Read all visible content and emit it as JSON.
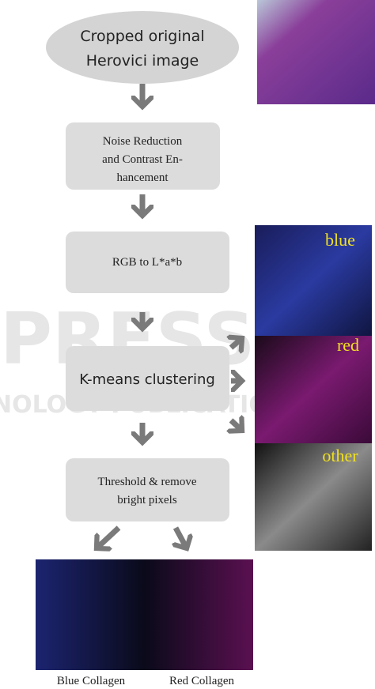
{
  "steps": [
    {
      "lines": [
        "Cropped original",
        "Herovici image"
      ]
    },
    {
      "lines": [
        "Noise Reduction",
        "and Contrast En-",
        "hancement"
      ]
    },
    {
      "lines": [
        "RGB to L*a*b"
      ]
    },
    {
      "lines": [
        "K-means clustering"
      ]
    },
    {
      "lines": [
        "Threshold & remove",
        "bright pixels"
      ]
    }
  ],
  "clusters": [
    "blue",
    "red",
    "other"
  ],
  "outputs": [
    "Blue Collagen",
    "Red Collagen"
  ],
  "watermark": [
    "PRESS",
    "NOLOGY PUBLICATIONS"
  ]
}
